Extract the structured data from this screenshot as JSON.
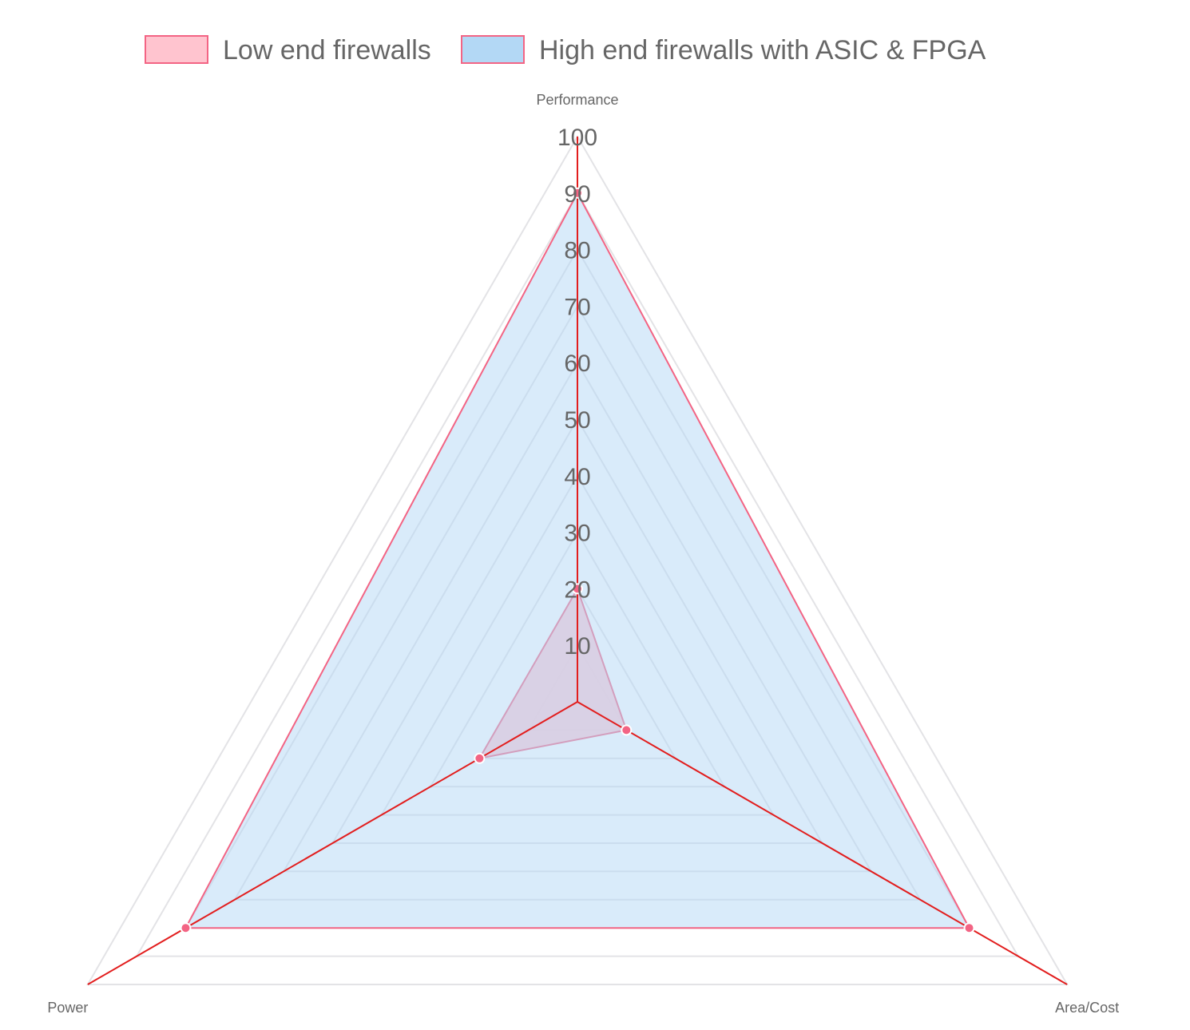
{
  "chart_data": {
    "type": "radar",
    "title": "",
    "labels": [
      "Performance",
      "Area/Cost",
      "Power"
    ],
    "r_range": [
      0,
      100
    ],
    "r_ticks": [
      10,
      20,
      30,
      40,
      50,
      60,
      70,
      80,
      90,
      100
    ],
    "grid": true,
    "legend_position": "top",
    "series": [
      {
        "name": "Low end firewalls",
        "values": [
          20,
          10,
          20
        ],
        "fill": "#ffc4cf",
        "fill_opacity": 0.9,
        "stroke": "#f36484"
      },
      {
        "name": "High end firewalls with ASIC & FPGA",
        "values": [
          90,
          80,
          80
        ],
        "fill": "#b3d8f5",
        "fill_opacity": 0.5,
        "stroke": "#f36484"
      }
    ],
    "spoke_color": "#e21d1d",
    "grid_color": "#e3e3e6"
  }
}
